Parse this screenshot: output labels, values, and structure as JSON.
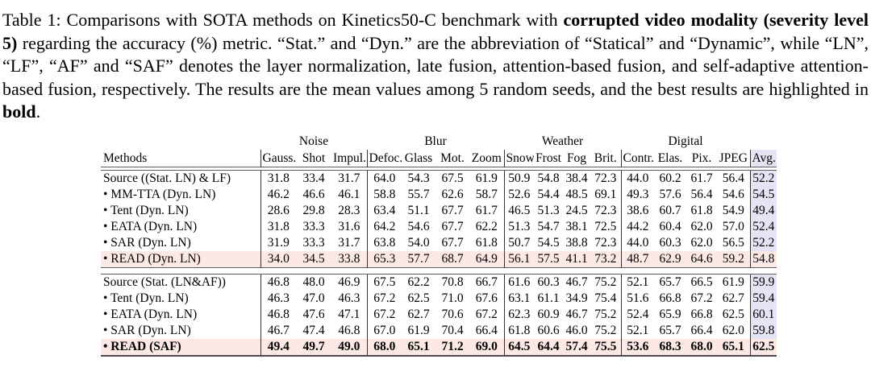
{
  "caption": {
    "segments": [
      {
        "text": "Table 1:  Comparisons with SOTA methods on Kinetics50-C benchmark with ",
        "bold": false
      },
      {
        "text": "corrupted video modality (severity level 5)",
        "bold": true
      },
      {
        "text": " regarding the accuracy (%) metric.  “Stat.” and “Dyn.” are the abbreviation of “Statical” and “Dynamic”, while “LN”, “LF”, “AF” and “SAF” denotes the layer normalization, late fusion, attention-based fusion, and self-adaptive attention-based fusion, respectively. The results are the mean values among 5 random seeds, and the best results are highlighted in ",
        "bold": false
      },
      {
        "text": "bold",
        "bold": true
      },
      {
        "text": ".",
        "bold": false
      }
    ]
  },
  "table": {
    "colors": {
      "avg_column_bg": "#e4e4f5",
      "highlight_row_bg": "#fce9e6"
    },
    "groups": [
      {
        "label": "Noise",
        "span": 3
      },
      {
        "label": "Blur",
        "span": 4
      },
      {
        "label": "Weather",
        "span": 4
      },
      {
        "label": "Digital",
        "span": 4
      }
    ],
    "columns": [
      "Methods",
      "Gauss.",
      "Shot",
      "Impul.",
      "Defoc.",
      "Glass",
      "Mot.",
      "Zoom",
      "Snow",
      "Frost",
      "Fog",
      "Brit.",
      "Contr.",
      "Elas.",
      "Pix.",
      "JPEG",
      "Avg."
    ],
    "blocks": [
      {
        "rows": [
          {
            "method": "Source ((Stat. LN) & LF)",
            "highlight": false,
            "bold": false,
            "values": [
              "31.8",
              "33.4",
              "31.7",
              "64.0",
              "54.3",
              "67.5",
              "61.9",
              "50.9",
              "54.8",
              "38.4",
              "72.3",
              "44.0",
              "60.2",
              "61.7",
              "56.4"
            ],
            "avg": "52.2"
          },
          {
            "method": "• MM-TTA (Dyn. LN)",
            "highlight": false,
            "bold": false,
            "values": [
              "46.2",
              "46.6",
              "46.1",
              "58.8",
              "55.7",
              "62.6",
              "58.7",
              "52.6",
              "54.4",
              "48.5",
              "69.1",
              "49.3",
              "57.6",
              "56.4",
              "54.6"
            ],
            "avg": "54.5"
          },
          {
            "method": "• Tent (Dyn. LN)",
            "highlight": false,
            "bold": false,
            "values": [
              "28.6",
              "29.8",
              "28.3",
              "63.4",
              "51.1",
              "67.7",
              "61.7",
              "46.5",
              "51.3",
              "24.5",
              "72.3",
              "38.6",
              "60.7",
              "61.8",
              "54.9"
            ],
            "avg": "49.4"
          },
          {
            "method": "• EATA (Dyn. LN)",
            "highlight": false,
            "bold": false,
            "values": [
              "31.8",
              "33.3",
              "31.6",
              "64.2",
              "54.6",
              "67.7",
              "62.2",
              "51.3",
              "54.7",
              "38.1",
              "72.5",
              "44.2",
              "60.4",
              "62.0",
              "57.0"
            ],
            "avg": "52.4"
          },
          {
            "method": "• SAR (Dyn. LN)",
            "highlight": false,
            "bold": false,
            "values": [
              "31.9",
              "33.3",
              "31.7",
              "63.8",
              "54.0",
              "67.7",
              "61.8",
              "50.7",
              "54.5",
              "38.8",
              "72.3",
              "44.0",
              "60.3",
              "62.0",
              "56.5"
            ],
            "avg": "52.2"
          },
          {
            "method": "• READ (Dyn. LN)",
            "highlight": true,
            "bold": false,
            "values": [
              "34.0",
              "34.5",
              "33.8",
              "65.3",
              "57.7",
              "68.7",
              "64.9",
              "56.1",
              "57.5",
              "41.1",
              "73.2",
              "48.7",
              "62.9",
              "64.6",
              "59.2"
            ],
            "avg": "54.8"
          }
        ]
      },
      {
        "rows": [
          {
            "method": "Source (Stat. (LN&AF))",
            "highlight": false,
            "bold": false,
            "values": [
              "46.8",
              "48.0",
              "46.9",
              "67.5",
              "62.2",
              "70.8",
              "66.7",
              "61.6",
              "60.3",
              "46.7",
              "75.2",
              "52.1",
              "65.7",
              "66.5",
              "61.9"
            ],
            "avg": "59.9"
          },
          {
            "method": "• Tent (Dyn. LN)",
            "highlight": false,
            "bold": false,
            "values": [
              "46.3",
              "47.0",
              "46.3",
              "67.2",
              "62.5",
              "71.0",
              "67.6",
              "63.1",
              "61.1",
              "34.9",
              "75.4",
              "51.6",
              "66.8",
              "67.2",
              "62.7"
            ],
            "avg": "59.4"
          },
          {
            "method": "• EATA (Dyn. LN)",
            "highlight": false,
            "bold": false,
            "values": [
              "46.8",
              "47.6",
              "47.1",
              "67.2",
              "62.7",
              "70.6",
              "67.2",
              "62.3",
              "60.9",
              "46.7",
              "75.2",
              "52.4",
              "65.9",
              "66.8",
              "62.5"
            ],
            "avg": "60.1"
          },
          {
            "method": "• SAR (Dyn. LN)",
            "highlight": false,
            "bold": false,
            "values": [
              "46.7",
              "47.4",
              "46.8",
              "67.0",
              "61.9",
              "70.4",
              "66.4",
              "61.8",
              "60.6",
              "46.0",
              "75.2",
              "52.1",
              "65.7",
              "66.4",
              "62.0"
            ],
            "avg": "59.8"
          },
          {
            "method": "• READ (SAF)",
            "highlight": true,
            "bold": true,
            "values": [
              "49.4",
              "49.7",
              "49.0",
              "68.0",
              "65.1",
              "71.2",
              "69.0",
              "64.5",
              "64.4",
              "57.4",
              "75.5",
              "53.6",
              "68.3",
              "68.0",
              "65.1"
            ],
            "avg": "62.5"
          }
        ]
      }
    ]
  }
}
